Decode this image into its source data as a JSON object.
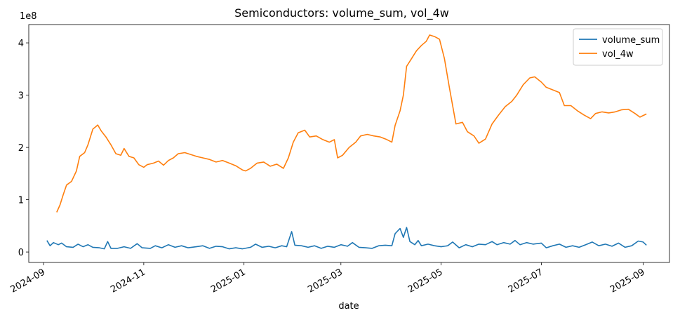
{
  "chart_data": {
    "type": "line",
    "title": "Semiconductors: volume_sum, vol_4w",
    "xlabel": "date",
    "ylabel": "",
    "y_multiplier_label": "1e8",
    "x_range": [
      "2024-08-23",
      "2025-09-17"
    ],
    "ylim": [
      -0.2,
      4.35
    ],
    "grid": false,
    "legend_position": "top-right",
    "x_ticks": [
      {
        "date": "2024-09-01",
        "label": "2024-09"
      },
      {
        "date": "2024-11-01",
        "label": "2024-11"
      },
      {
        "date": "2025-01-01",
        "label": "2025-01"
      },
      {
        "date": "2025-03-01",
        "label": "2025-03"
      },
      {
        "date": "2025-05-01",
        "label": "2025-05"
      },
      {
        "date": "2025-07-01",
        "label": "2025-07"
      },
      {
        "date": "2025-09-01",
        "label": "2025-09"
      }
    ],
    "y_ticks": [
      {
        "value": 0,
        "label": "0"
      },
      {
        "value": 1,
        "label": "1"
      },
      {
        "value": 2,
        "label": "2"
      },
      {
        "value": 3,
        "label": "3"
      },
      {
        "value": 4,
        "label": "4"
      }
    ],
    "series": [
      {
        "name": "volume_sum",
        "color": "#1f77b4",
        "points": [
          [
            "2024-09-03",
            0.22
          ],
          [
            "2024-09-05",
            0.12
          ],
          [
            "2024-09-07",
            0.18
          ],
          [
            "2024-09-10",
            0.14
          ],
          [
            "2024-09-12",
            0.17
          ],
          [
            "2024-09-15",
            0.1
          ],
          [
            "2024-09-19",
            0.09
          ],
          [
            "2024-09-22",
            0.15
          ],
          [
            "2024-09-25",
            0.1
          ],
          [
            "2024-09-28",
            0.14
          ],
          [
            "2024-10-01",
            0.09
          ],
          [
            "2024-10-05",
            0.08
          ],
          [
            "2024-10-08",
            0.06
          ],
          [
            "2024-10-10",
            0.2
          ],
          [
            "2024-10-12",
            0.07
          ],
          [
            "2024-10-16",
            0.07
          ],
          [
            "2024-10-20",
            0.1
          ],
          [
            "2024-10-24",
            0.07
          ],
          [
            "2024-10-28",
            0.16
          ],
          [
            "2024-10-31",
            0.08
          ],
          [
            "2024-11-05",
            0.07
          ],
          [
            "2024-11-08",
            0.12
          ],
          [
            "2024-11-12",
            0.08
          ],
          [
            "2024-11-16",
            0.14
          ],
          [
            "2024-11-20",
            0.09
          ],
          [
            "2024-11-24",
            0.12
          ],
          [
            "2024-11-28",
            0.08
          ],
          [
            "2024-12-03",
            0.1
          ],
          [
            "2024-12-07",
            0.12
          ],
          [
            "2024-12-11",
            0.07
          ],
          [
            "2024-12-15",
            0.11
          ],
          [
            "2024-12-19",
            0.1
          ],
          [
            "2024-12-23",
            0.06
          ],
          [
            "2024-12-27",
            0.08
          ],
          [
            "2024-12-31",
            0.06
          ],
          [
            "2025-01-05",
            0.09
          ],
          [
            "2025-01-08",
            0.15
          ],
          [
            "2025-01-12",
            0.09
          ],
          [
            "2025-01-16",
            0.11
          ],
          [
            "2025-01-20",
            0.08
          ],
          [
            "2025-01-24",
            0.12
          ],
          [
            "2025-01-27",
            0.1
          ],
          [
            "2025-01-30",
            0.39
          ],
          [
            "2025-02-01",
            0.13
          ],
          [
            "2025-02-05",
            0.12
          ],
          [
            "2025-02-09",
            0.09
          ],
          [
            "2025-02-13",
            0.12
          ],
          [
            "2025-02-17",
            0.07
          ],
          [
            "2025-02-21",
            0.11
          ],
          [
            "2025-02-25",
            0.09
          ],
          [
            "2025-03-01",
            0.14
          ],
          [
            "2025-03-05",
            0.11
          ],
          [
            "2025-03-08",
            0.18
          ],
          [
            "2025-03-12",
            0.09
          ],
          [
            "2025-03-16",
            0.08
          ],
          [
            "2025-03-20",
            0.07
          ],
          [
            "2025-03-24",
            0.12
          ],
          [
            "2025-03-28",
            0.13
          ],
          [
            "2025-04-01",
            0.12
          ],
          [
            "2025-04-03",
            0.35
          ],
          [
            "2025-04-06",
            0.45
          ],
          [
            "2025-04-08",
            0.28
          ],
          [
            "2025-04-10",
            0.47
          ],
          [
            "2025-04-12",
            0.2
          ],
          [
            "2025-04-15",
            0.14
          ],
          [
            "2025-04-17",
            0.22
          ],
          [
            "2025-04-19",
            0.12
          ],
          [
            "2025-04-23",
            0.15
          ],
          [
            "2025-04-27",
            0.12
          ],
          [
            "2025-05-01",
            0.1
          ],
          [
            "2025-05-05",
            0.12
          ],
          [
            "2025-05-08",
            0.19
          ],
          [
            "2025-05-12",
            0.08
          ],
          [
            "2025-05-16",
            0.14
          ],
          [
            "2025-05-20",
            0.1
          ],
          [
            "2025-05-24",
            0.15
          ],
          [
            "2025-05-28",
            0.14
          ],
          [
            "2025-06-01",
            0.2
          ],
          [
            "2025-06-04",
            0.14
          ],
          [
            "2025-06-08",
            0.18
          ],
          [
            "2025-06-12",
            0.15
          ],
          [
            "2025-06-15",
            0.22
          ],
          [
            "2025-06-18",
            0.14
          ],
          [
            "2025-06-22",
            0.18
          ],
          [
            "2025-06-26",
            0.15
          ],
          [
            "2025-07-01",
            0.17
          ],
          [
            "2025-07-04",
            0.08
          ],
          [
            "2025-07-08",
            0.12
          ],
          [
            "2025-07-12",
            0.15
          ],
          [
            "2025-07-16",
            0.09
          ],
          [
            "2025-07-20",
            0.12
          ],
          [
            "2025-07-24",
            0.09
          ],
          [
            "2025-07-28",
            0.14
          ],
          [
            "2025-08-01",
            0.19
          ],
          [
            "2025-08-05",
            0.12
          ],
          [
            "2025-08-09",
            0.15
          ],
          [
            "2025-08-13",
            0.11
          ],
          [
            "2025-08-17",
            0.17
          ],
          [
            "2025-08-21",
            0.09
          ],
          [
            "2025-08-25",
            0.12
          ],
          [
            "2025-08-29",
            0.21
          ],
          [
            "2025-09-01",
            0.19
          ],
          [
            "2025-09-03",
            0.13
          ]
        ]
      },
      {
        "name": "vol_4w",
        "color": "#ff7f0e",
        "points": [
          [
            "2024-09-09",
            0.76
          ],
          [
            "2024-09-11",
            0.9
          ],
          [
            "2024-09-13",
            1.1
          ],
          [
            "2024-09-15",
            1.28
          ],
          [
            "2024-09-18",
            1.35
          ],
          [
            "2024-09-21",
            1.55
          ],
          [
            "2024-09-23",
            1.83
          ],
          [
            "2024-09-26",
            1.9
          ],
          [
            "2024-09-28",
            2.05
          ],
          [
            "2024-10-01",
            2.35
          ],
          [
            "2024-10-04",
            2.43
          ],
          [
            "2024-10-06",
            2.32
          ],
          [
            "2024-10-09",
            2.2
          ],
          [
            "2024-10-12",
            2.05
          ],
          [
            "2024-10-15",
            1.88
          ],
          [
            "2024-10-18",
            1.85
          ],
          [
            "2024-10-20",
            1.98
          ],
          [
            "2024-10-23",
            1.83
          ],
          [
            "2024-10-26",
            1.8
          ],
          [
            "2024-10-29",
            1.67
          ],
          [
            "2024-11-01",
            1.62
          ],
          [
            "2024-11-03",
            1.67
          ],
          [
            "2024-11-07",
            1.7
          ],
          [
            "2024-11-10",
            1.74
          ],
          [
            "2024-11-13",
            1.66
          ],
          [
            "2024-11-16",
            1.75
          ],
          [
            "2024-11-19",
            1.8
          ],
          [
            "2024-11-22",
            1.88
          ],
          [
            "2024-11-26",
            1.9
          ],
          [
            "2024-11-30",
            1.86
          ],
          [
            "2024-12-03",
            1.83
          ],
          [
            "2024-12-07",
            1.8
          ],
          [
            "2024-12-11",
            1.77
          ],
          [
            "2024-12-15",
            1.72
          ],
          [
            "2024-12-19",
            1.75
          ],
          [
            "2024-12-23",
            1.7
          ],
          [
            "2024-12-27",
            1.65
          ],
          [
            "2024-12-31",
            1.57
          ],
          [
            "2025-01-02",
            1.55
          ],
          [
            "2025-01-05",
            1.6
          ],
          [
            "2025-01-09",
            1.7
          ],
          [
            "2025-01-13",
            1.72
          ],
          [
            "2025-01-17",
            1.64
          ],
          [
            "2025-01-21",
            1.68
          ],
          [
            "2025-01-25",
            1.6
          ],
          [
            "2025-01-28",
            1.8
          ],
          [
            "2025-01-31",
            2.1
          ],
          [
            "2025-02-03",
            2.28
          ],
          [
            "2025-02-07",
            2.33
          ],
          [
            "2025-02-10",
            2.2
          ],
          [
            "2025-02-14",
            2.22
          ],
          [
            "2025-02-18",
            2.15
          ],
          [
            "2025-02-22",
            2.1
          ],
          [
            "2025-02-25",
            2.15
          ],
          [
            "2025-02-27",
            1.8
          ],
          [
            "2025-03-02",
            1.85
          ],
          [
            "2025-03-06",
            2.0
          ],
          [
            "2025-03-10",
            2.1
          ],
          [
            "2025-03-13",
            2.22
          ],
          [
            "2025-03-17",
            2.25
          ],
          [
            "2025-03-21",
            2.22
          ],
          [
            "2025-03-25",
            2.2
          ],
          [
            "2025-03-29",
            2.15
          ],
          [
            "2025-04-01",
            2.1
          ],
          [
            "2025-04-03",
            2.42
          ],
          [
            "2025-04-06",
            2.7
          ],
          [
            "2025-04-08",
            3.0
          ],
          [
            "2025-04-10",
            3.55
          ],
          [
            "2025-04-13",
            3.7
          ],
          [
            "2025-04-16",
            3.85
          ],
          [
            "2025-04-19",
            3.95
          ],
          [
            "2025-04-22",
            4.03
          ],
          [
            "2025-04-24",
            4.15
          ],
          [
            "2025-04-27",
            4.12
          ],
          [
            "2025-04-30",
            4.07
          ],
          [
            "2025-05-03",
            3.7
          ],
          [
            "2025-05-06",
            3.15
          ],
          [
            "2025-05-10",
            2.45
          ],
          [
            "2025-05-14",
            2.48
          ],
          [
            "2025-05-17",
            2.3
          ],
          [
            "2025-05-21",
            2.22
          ],
          [
            "2025-05-24",
            2.08
          ],
          [
            "2025-05-28",
            2.16
          ],
          [
            "2025-06-01",
            2.45
          ],
          [
            "2025-06-05",
            2.62
          ],
          [
            "2025-06-09",
            2.78
          ],
          [
            "2025-06-13",
            2.88
          ],
          [
            "2025-06-16",
            3.0
          ],
          [
            "2025-06-20",
            3.2
          ],
          [
            "2025-06-24",
            3.33
          ],
          [
            "2025-06-27",
            3.35
          ],
          [
            "2025-07-01",
            3.25
          ],
          [
            "2025-07-04",
            3.15
          ],
          [
            "2025-07-08",
            3.1
          ],
          [
            "2025-07-12",
            3.05
          ],
          [
            "2025-07-15",
            2.8
          ],
          [
            "2025-07-19",
            2.8
          ],
          [
            "2025-07-23",
            2.7
          ],
          [
            "2025-07-27",
            2.62
          ],
          [
            "2025-07-31",
            2.55
          ],
          [
            "2025-08-03",
            2.65
          ],
          [
            "2025-08-07",
            2.68
          ],
          [
            "2025-08-11",
            2.66
          ],
          [
            "2025-08-15",
            2.68
          ],
          [
            "2025-08-19",
            2.72
          ],
          [
            "2025-08-23",
            2.73
          ],
          [
            "2025-08-27",
            2.65
          ],
          [
            "2025-08-30",
            2.58
          ],
          [
            "2025-09-03",
            2.64
          ]
        ]
      }
    ]
  }
}
